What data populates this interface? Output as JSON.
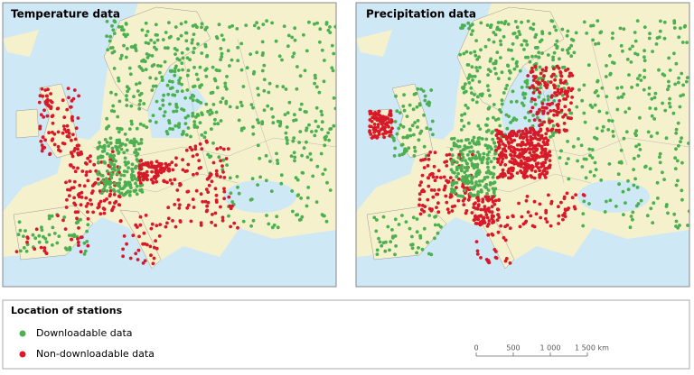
{
  "maps": [
    {
      "title": "Temperature data"
    },
    {
      "title": "Precipitation data"
    }
  ],
  "legend": {
    "title": "Location of stations",
    "items": [
      "Downloadable data",
      "Non-downloadable data"
    ]
  },
  "scale_bar": {
    "labels": [
      "0",
      "500",
      "1 000",
      "1 500 km"
    ]
  }
}
